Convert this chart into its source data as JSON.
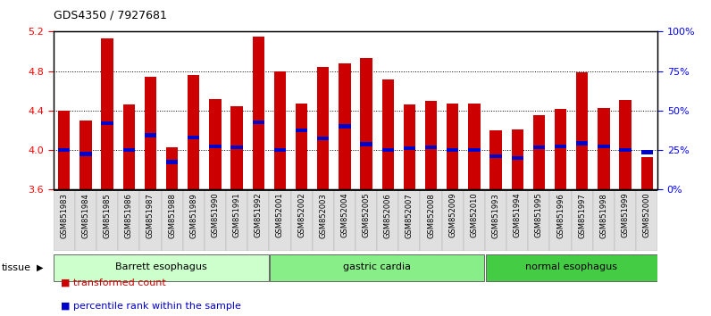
{
  "title": "GDS4350 / 7927681",
  "samples": [
    "GSM851983",
    "GSM851984",
    "GSM851985",
    "GSM851986",
    "GSM851987",
    "GSM851988",
    "GSM851989",
    "GSM851990",
    "GSM851991",
    "GSM851992",
    "GSM852001",
    "GSM852002",
    "GSM852003",
    "GSM852004",
    "GSM852005",
    "GSM852006",
    "GSM852007",
    "GSM852008",
    "GSM852009",
    "GSM852010",
    "GSM851993",
    "GSM851994",
    "GSM851995",
    "GSM851996",
    "GSM851997",
    "GSM851998",
    "GSM851999",
    "GSM852000"
  ],
  "bar_heights": [
    4.4,
    4.3,
    5.13,
    4.46,
    4.74,
    4.03,
    4.76,
    4.52,
    4.44,
    5.15,
    4.8,
    4.47,
    4.84,
    4.88,
    4.93,
    4.72,
    4.46,
    4.5,
    4.47,
    4.47,
    4.2,
    4.21,
    4.35,
    4.42,
    4.79,
    4.43,
    4.51,
    3.93
  ],
  "blue_markers": [
    4.0,
    3.96,
    4.27,
    4.0,
    4.15,
    3.88,
    4.13,
    4.04,
    4.03,
    4.28,
    4.0,
    4.2,
    4.12,
    4.24,
    4.06,
    4.0,
    4.02,
    4.03,
    4.0,
    4.0,
    3.94,
    3.92,
    4.03,
    4.04,
    4.07,
    4.04,
    4.0,
    3.98
  ],
  "groups": [
    {
      "label": "Barrett esophagus",
      "start": 0,
      "end": 10,
      "color": "#ccffcc"
    },
    {
      "label": "gastric cardia",
      "start": 10,
      "end": 20,
      "color": "#88ee88"
    },
    {
      "label": "normal esophagus",
      "start": 20,
      "end": 28,
      "color": "#44cc44"
    }
  ],
  "bar_color": "#cc0000",
  "blue_color": "#0000cc",
  "ylim_left": [
    3.6,
    5.2
  ],
  "yticks_left": [
    3.6,
    4.0,
    4.4,
    4.8,
    5.2
  ],
  "yticks_right": [
    0,
    25,
    50,
    75,
    100
  ],
  "grid_values": [
    4.0,
    4.4,
    4.8
  ],
  "legend": [
    {
      "label": "transformed count",
      "color": "#cc0000"
    },
    {
      "label": "percentile rank within the sample",
      "color": "#0000cc"
    }
  ],
  "tissue_label": "tissue",
  "bar_width": 0.55,
  "background_color": "#ffffff",
  "tick_label_bg": "#dddddd",
  "tick_fontsize": 6.0,
  "title_fontsize": 9
}
